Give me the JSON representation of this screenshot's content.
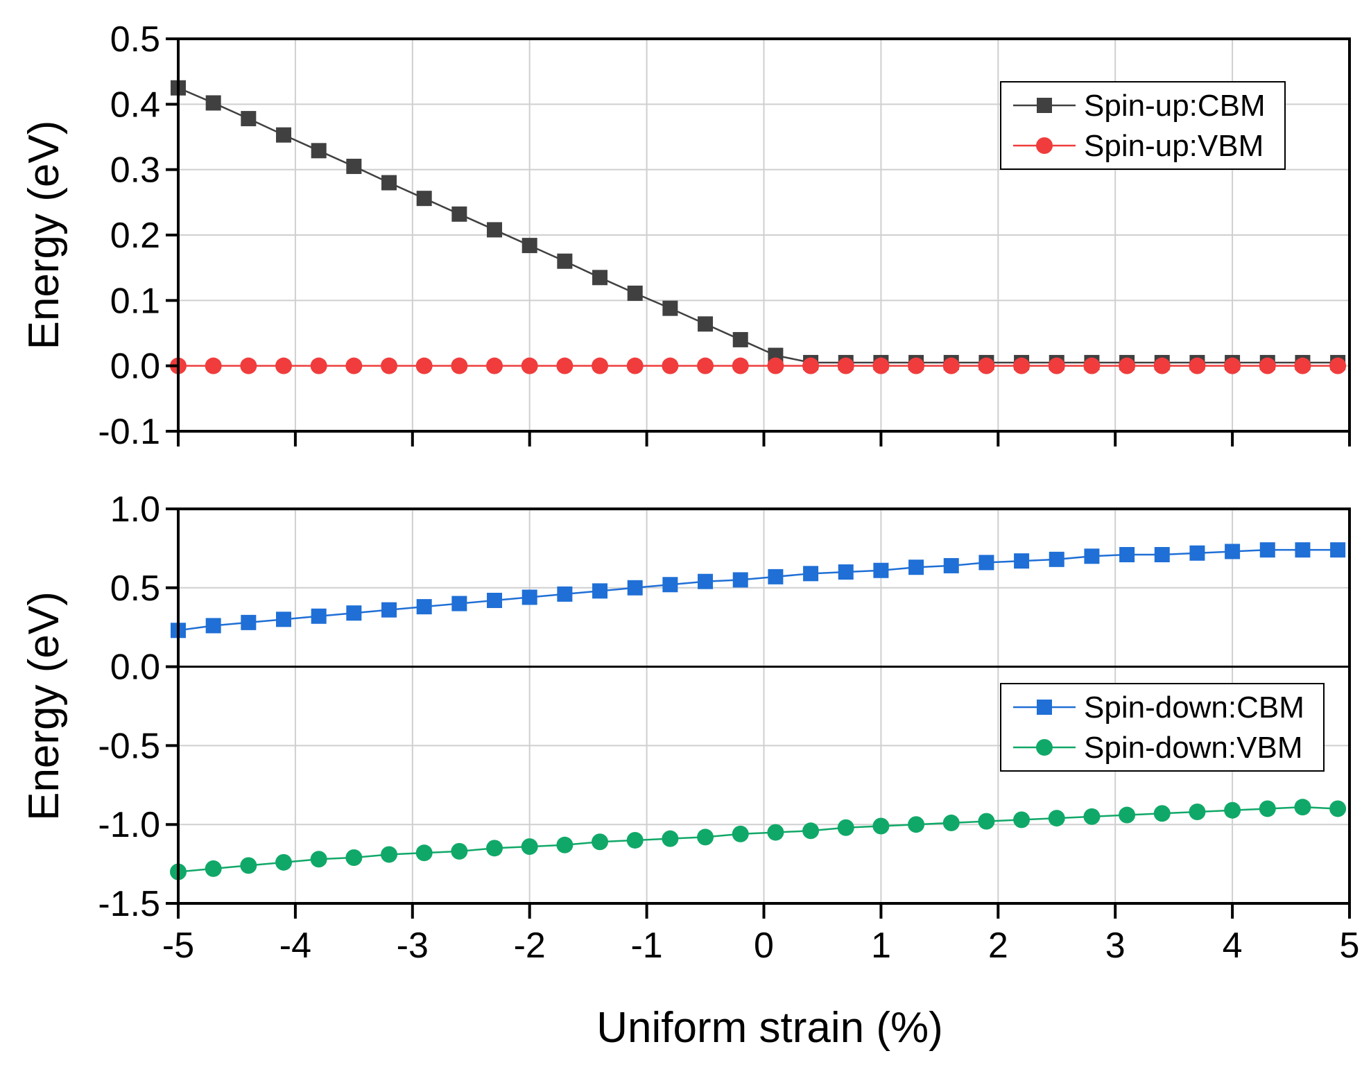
{
  "chart_data": [
    {
      "type": "line",
      "panel": "top",
      "title": "",
      "xlabel": "",
      "ylabel": "Energy (eV)",
      "xlim": [
        -5,
        5
      ],
      "ylim": [
        -0.1,
        0.5
      ],
      "yticks": [
        "0.5",
        "0.4",
        "0.3",
        "0.2",
        "0.1",
        "0.0",
        "-0.1"
      ],
      "ytick_values": [
        0.5,
        0.4,
        0.3,
        0.2,
        0.1,
        0.0,
        -0.1
      ],
      "grid": true,
      "legend_position": "top-right",
      "x": [
        -5.0,
        -4.7,
        -4.4,
        -4.1,
        -3.8,
        -3.5,
        -3.2,
        -2.9,
        -2.6,
        -2.3,
        -2.0,
        -1.7,
        -1.4,
        -1.1,
        -0.8,
        -0.5,
        -0.2,
        0.1,
        0.4,
        0.7,
        1.0,
        1.3,
        1.6,
        1.9,
        2.2,
        2.5,
        2.8,
        3.1,
        3.4,
        3.7,
        4.0,
        4.3,
        4.6,
        4.9
      ],
      "series": [
        {
          "name": "Spin-up:CBM",
          "color": "#404040",
          "marker": "square",
          "values": [
            0.425,
            0.402,
            0.378,
            0.353,
            0.329,
            0.305,
            0.28,
            0.256,
            0.232,
            0.208,
            0.184,
            0.16,
            0.135,
            0.111,
            0.088,
            0.064,
            0.04,
            0.016,
            0.005,
            0.005,
            0.005,
            0.005,
            0.005,
            0.005,
            0.005,
            0.005,
            0.005,
            0.005,
            0.005,
            0.005,
            0.005,
            0.005,
            0.005,
            0.005
          ]
        },
        {
          "name": "Spin-up:VBM",
          "color": "#f03c3c",
          "marker": "circle",
          "values": [
            0.0,
            0.0,
            0.0,
            0.0,
            0.0,
            0.0,
            0.0,
            0.0,
            0.0,
            0.0,
            0.0,
            0.0,
            0.0,
            0.0,
            0.0,
            0.0,
            0.0,
            0.0,
            0.0,
            0.0,
            0.0,
            0.0,
            0.0,
            0.0,
            0.0,
            0.0,
            0.0,
            0.0,
            0.0,
            0.0,
            0.0,
            0.0,
            0.0,
            0.0
          ]
        }
      ]
    },
    {
      "type": "line",
      "panel": "bottom",
      "title": "",
      "xlabel": "Uniform strain (%)",
      "ylabel": "Energy (eV)",
      "xlim": [
        -5,
        5
      ],
      "ylim": [
        -1.5,
        1.0
      ],
      "xticks": [
        "-5",
        "-4",
        "-3",
        "-2",
        "-1",
        "0",
        "1",
        "2",
        "3",
        "4",
        "5"
      ],
      "xtick_values": [
        -5,
        -4,
        -3,
        -2,
        -1,
        0,
        1,
        2,
        3,
        4,
        5
      ],
      "yticks": [
        "1.0",
        "0.5",
        "0.0",
        "-0.5",
        "-1.0",
        "-1.5"
      ],
      "ytick_values": [
        1.0,
        0.5,
        0.0,
        -0.5,
        -1.0,
        -1.5
      ],
      "grid": true,
      "legend_position": "right",
      "x": [
        -5.0,
        -4.7,
        -4.4,
        -4.1,
        -3.8,
        -3.5,
        -3.2,
        -2.9,
        -2.6,
        -2.3,
        -2.0,
        -1.7,
        -1.4,
        -1.1,
        -0.8,
        -0.5,
        -0.2,
        0.1,
        0.4,
        0.7,
        1.0,
        1.3,
        1.6,
        1.9,
        2.2,
        2.5,
        2.8,
        3.1,
        3.4,
        3.7,
        4.0,
        4.3,
        4.6,
        4.9
      ],
      "series": [
        {
          "name": "Spin-down:CBM",
          "color": "#1f6fd6",
          "marker": "square",
          "values": [
            0.23,
            0.26,
            0.28,
            0.3,
            0.32,
            0.34,
            0.36,
            0.38,
            0.4,
            0.42,
            0.44,
            0.46,
            0.48,
            0.5,
            0.52,
            0.54,
            0.55,
            0.57,
            0.59,
            0.6,
            0.61,
            0.63,
            0.64,
            0.66,
            0.67,
            0.68,
            0.7,
            0.71,
            0.71,
            0.72,
            0.73,
            0.74,
            0.74,
            0.74
          ]
        },
        {
          "name": "Spin-down:VBM",
          "color": "#10a868",
          "marker": "circle",
          "values": [
            -1.3,
            -1.28,
            -1.26,
            -1.24,
            -1.22,
            -1.21,
            -1.19,
            -1.18,
            -1.17,
            -1.15,
            -1.14,
            -1.13,
            -1.11,
            -1.1,
            -1.09,
            -1.08,
            -1.06,
            -1.05,
            -1.04,
            -1.02,
            -1.01,
            -1.0,
            -0.99,
            -0.98,
            -0.97,
            -0.96,
            -0.95,
            -0.94,
            -0.93,
            -0.92,
            -0.91,
            -0.9,
            -0.89,
            -0.9
          ]
        }
      ]
    }
  ]
}
